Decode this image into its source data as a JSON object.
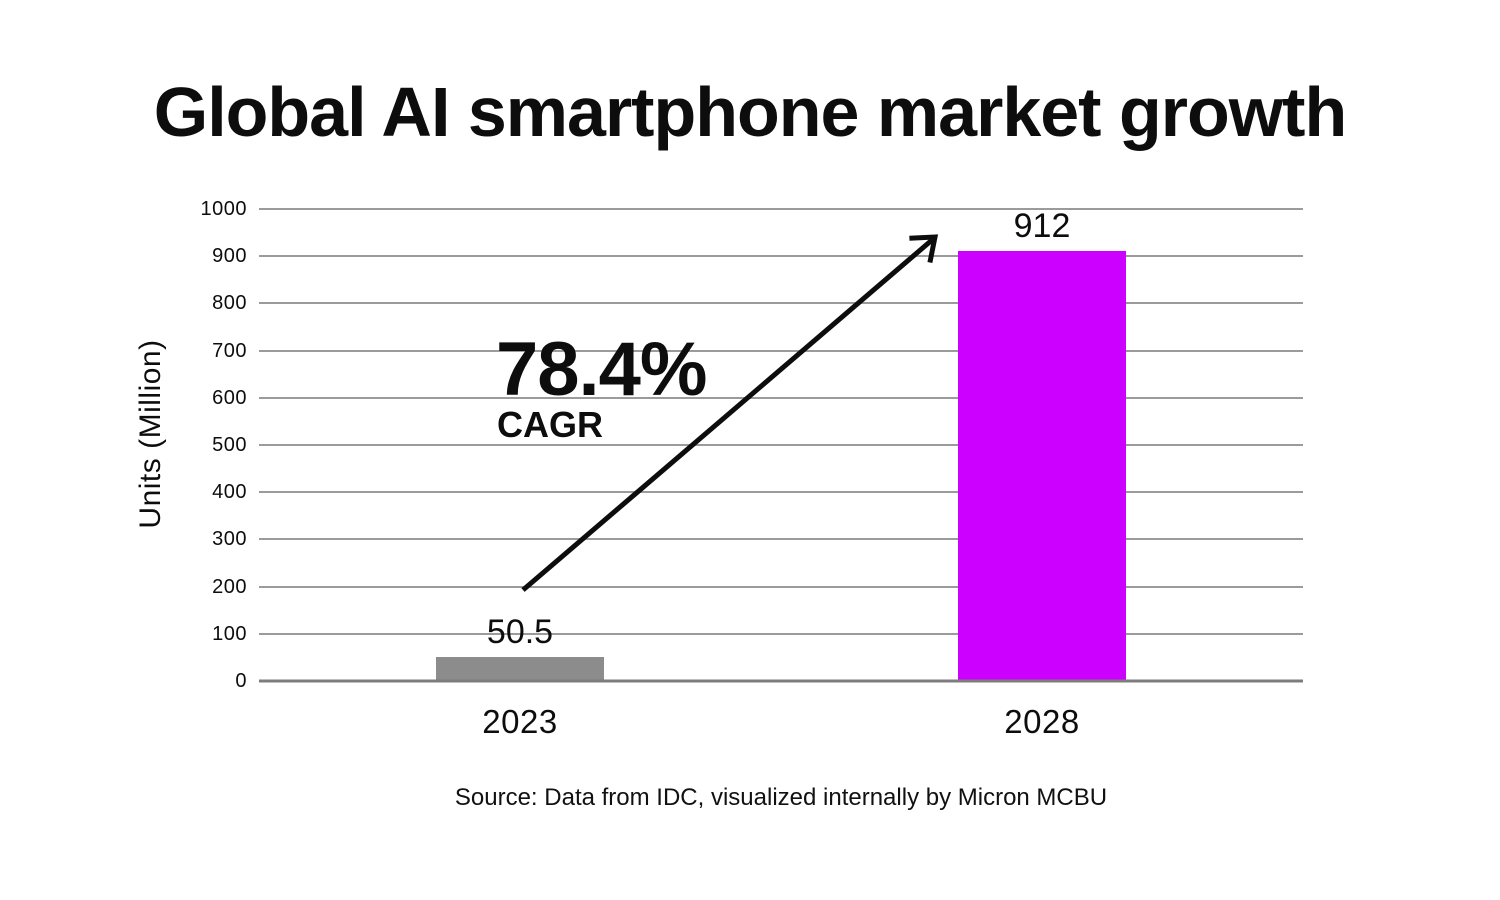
{
  "source": "Source: Data from IDC, visualized internally by Micron MCBU",
  "chart_data": {
    "type": "bar",
    "title": "Global AI smartphone market growth",
    "categories": [
      "2023",
      "2028"
    ],
    "values": [
      50.5,
      912
    ],
    "value_labels": [
      "50.5",
      "912"
    ],
    "bar_colors": [
      "#8c8c8c",
      "#cc00ff"
    ],
    "xlabel": "",
    "ylabel": "Units (Million)",
    "ylim": [
      0,
      1000
    ],
    "yticks": [
      0,
      100,
      200,
      300,
      400,
      500,
      600,
      700,
      800,
      900,
      1000
    ],
    "grid": "horizontal",
    "grid_color": "#9b9b9b",
    "baseline_color": "#7d7d7d",
    "legend": "none",
    "annotations": [
      {
        "text": "78.4%",
        "label": "CAGR",
        "shape": "arrow-up-right",
        "arrow_from_value": 200,
        "arrow_to_value": 940
      }
    ]
  }
}
